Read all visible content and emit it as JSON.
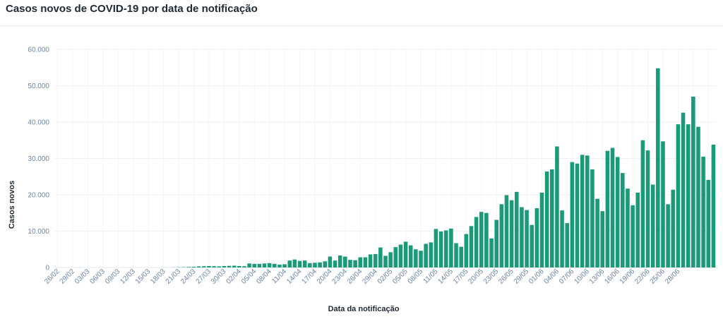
{
  "title": "Casos novos de COVID-19 por data de notificação",
  "chart_data": {
    "type": "bar",
    "xlabel": "Data da notificação",
    "ylabel": "Casos novos",
    "ylim": [
      0,
      60000
    ],
    "yticks": [
      "0",
      "10.000",
      "20.000",
      "30.000",
      "40.000",
      "50.000",
      "60.000"
    ],
    "grid": true,
    "bar_color": "#1a9a78",
    "x_tick_labels": [
      "26/02",
      "29/02",
      "03/03",
      "06/03",
      "09/03",
      "12/03",
      "15/03",
      "18/03",
      "21/03",
      "24/03",
      "27/03",
      "30/03",
      "02/04",
      "05/04",
      "08/04",
      "11/04",
      "14/04",
      "17/04",
      "20/04",
      "23/04",
      "26/04",
      "29/04",
      "02/05",
      "05/05",
      "08/05",
      "11/05",
      "14/05",
      "17/05",
      "20/05",
      "23/05",
      "26/05",
      "29/05",
      "01/06",
      "04/06",
      "07/06",
      "10/06",
      "13/06",
      "16/06",
      "19/06",
      "22/06",
      "25/06",
      "28/06"
    ],
    "values": [
      0,
      0,
      0,
      0,
      0,
      0,
      0,
      0,
      0,
      0,
      0,
      0,
      0,
      0,
      0,
      0,
      0,
      0,
      0,
      0,
      0,
      0,
      0,
      25,
      50,
      100,
      150,
      200,
      300,
      350,
      400,
      350,
      300,
      400,
      450,
      500,
      400,
      350,
      1100,
      1000,
      1000,
      1100,
      1200,
      1000,
      800,
      900,
      1900,
      2200,
      1800,
      1900,
      1200,
      1300,
      1400,
      1700,
      3000,
      1900,
      3300,
      3000,
      2100,
      2000,
      2800,
      2800,
      3600,
      3700,
      5500,
      3200,
      4200,
      5600,
      6300,
      7100,
      6100,
      5000,
      4600,
      6500,
      6900,
      10600,
      9900,
      10200,
      10700,
      6700,
      5700,
      9200,
      11400,
      13900,
      15300,
      15000,
      8000,
      13100,
      17400,
      19900,
      18500,
      20800,
      16600,
      15800,
      11700,
      16300,
      20600,
      26400,
      27000,
      33300,
      15700,
      12200,
      29000,
      28600,
      31000,
      30800,
      27000,
      18900,
      15500,
      32100,
      32900,
      30400,
      26000,
      21700,
      17100,
      20600,
      35000,
      32200,
      22800,
      54800,
      34700,
      17400,
      21400,
      39400,
      42600,
      39400,
      47000,
      38700,
      30500,
      24100,
      33800
    ]
  }
}
